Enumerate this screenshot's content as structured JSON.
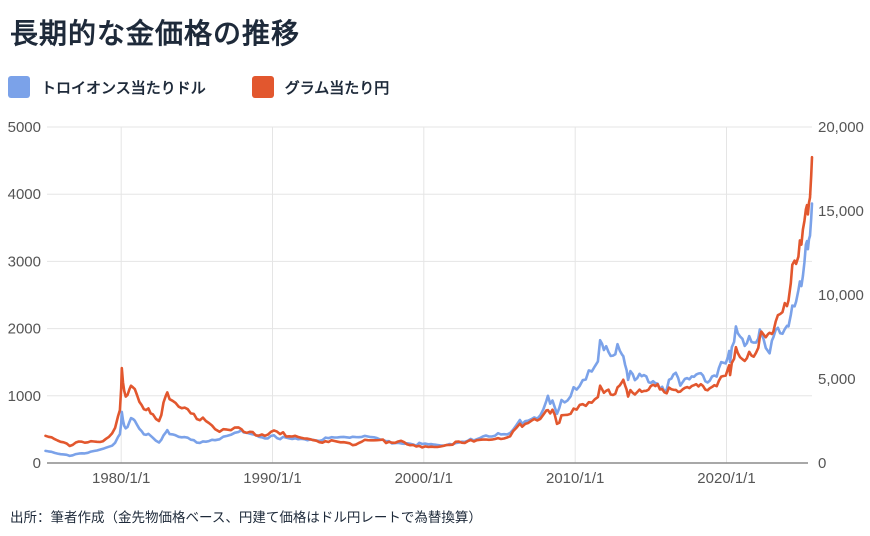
{
  "title": "長期的な金価格の推移",
  "source_note": "出所：筆者作成（金先物価格ベース、円建て価格はドル円レートで為替換算）",
  "colors": {
    "usd_line": "#7BA2E9",
    "jpy_line": "#E2572E",
    "title_text": "#1E2A3A",
    "tick_text": "#555555",
    "grid": "#E5E5E5",
    "axis": "#8C8C8C",
    "background": "#FFFFFF"
  },
  "legend": [
    {
      "label": "トロイオンス当たりドル",
      "color": "#7BA2E9"
    },
    {
      "label": "グラム当たり円",
      "color": "#E2572E"
    }
  ],
  "chart_data": {
    "type": "line",
    "title": "長期的な金価格の推移",
    "grid": true,
    "legend_position": "top-left",
    "x_axis": {
      "range": [
        1975.1,
        2025.65
      ],
      "ticks": [
        {
          "label": "1980/1/1",
          "year": 1980
        },
        {
          "label": "1990/1/1",
          "year": 1990
        },
        {
          "label": "2000/1/1",
          "year": 2000
        },
        {
          "label": "2010/1/1",
          "year": 2010
        },
        {
          "label": "2020/1/1",
          "year": 2020
        }
      ]
    },
    "y_left": {
      "range": [
        0,
        5000
      ],
      "tick_values": [
        0,
        1000,
        2000,
        3000,
        4000,
        5000
      ],
      "tick_labels": [
        "0",
        "1000",
        "2000",
        "3000",
        "4000",
        "5000"
      ]
    },
    "y_right": {
      "range": [
        0,
        20000
      ],
      "tick_values": [
        0,
        5000,
        10000,
        15000,
        20000
      ],
      "tick_labels": [
        "0",
        "5,000",
        "10,000",
        "15,000",
        "20,000"
      ]
    },
    "series": [
      {
        "name": "トロイオンス当たりドル",
        "axis": "left",
        "color": "#7BA2E9"
      },
      {
        "name": "グラム当たり円",
        "axis": "right",
        "color": "#E2572E"
      }
    ],
    "points_format": [
      "year",
      "usd_per_troy_oz",
      "jpy_per_gram"
    ],
    "points": [
      [
        1975.0,
        180,
        1620
      ],
      [
        1975.2,
        172,
        1560
      ],
      [
        1975.4,
        166,
        1530
      ],
      [
        1975.6,
        150,
        1420
      ],
      [
        1975.8,
        140,
        1340
      ],
      [
        1976.0,
        131,
        1260
      ],
      [
        1976.2,
        128,
        1230
      ],
      [
        1976.4,
        122,
        1160
      ],
      [
        1976.6,
        105,
        1010
      ],
      [
        1976.8,
        114,
        1080
      ],
      [
        1977.0,
        132,
        1220
      ],
      [
        1977.2,
        140,
        1280
      ],
      [
        1977.4,
        144,
        1270
      ],
      [
        1977.6,
        143,
        1210
      ],
      [
        1977.8,
        152,
        1230
      ],
      [
        1978.0,
        170,
        1300
      ],
      [
        1978.2,
        178,
        1280
      ],
      [
        1978.4,
        186,
        1260
      ],
      [
        1978.6,
        200,
        1250
      ],
      [
        1978.8,
        212,
        1300
      ],
      [
        1979.0,
        228,
        1440
      ],
      [
        1979.2,
        242,
        1560
      ],
      [
        1979.4,
        258,
        1760
      ],
      [
        1979.6,
        300,
        2090
      ],
      [
        1979.8,
        390,
        2800
      ],
      [
        1979.92,
        430,
        3150
      ],
      [
        1980.0,
        590,
        4450
      ],
      [
        1980.04,
        760,
        5650
      ],
      [
        1980.12,
        635,
        4800
      ],
      [
        1980.2,
        555,
        4300
      ],
      [
        1980.3,
        515,
        3950
      ],
      [
        1980.42,
        535,
        4050
      ],
      [
        1980.55,
        615,
        4400
      ],
      [
        1980.65,
        668,
        4600
      ],
      [
        1980.78,
        655,
        4500
      ],
      [
        1980.9,
        630,
        4400
      ],
      [
        1981.05,
        570,
        4050
      ],
      [
        1981.2,
        510,
        3650
      ],
      [
        1981.35,
        475,
        3450
      ],
      [
        1981.5,
        425,
        3200
      ],
      [
        1981.65,
        420,
        3150
      ],
      [
        1981.8,
        435,
        3250
      ],
      [
        1981.95,
        405,
        2950
      ],
      [
        1982.1,
        375,
        2900
      ],
      [
        1982.3,
        330,
        2620
      ],
      [
        1982.5,
        305,
        2500
      ],
      [
        1982.65,
        345,
        2850
      ],
      [
        1982.8,
        410,
        3600
      ],
      [
        1982.95,
        455,
        4000
      ],
      [
        1983.05,
        490,
        4200
      ],
      [
        1983.2,
        430,
        3800
      ],
      [
        1983.4,
        425,
        3700
      ],
      [
        1983.6,
        412,
        3580
      ],
      [
        1983.8,
        390,
        3350
      ],
      [
        1984.0,
        382,
        3260
      ],
      [
        1984.2,
        386,
        3300
      ],
      [
        1984.4,
        376,
        3200
      ],
      [
        1984.6,
        346,
        2950
      ],
      [
        1984.8,
        340,
        2920
      ],
      [
        1985.0,
        303,
        2620
      ],
      [
        1985.2,
        299,
        2550
      ],
      [
        1985.4,
        322,
        2700
      ],
      [
        1985.6,
        317,
        2500
      ],
      [
        1985.8,
        326,
        2380
      ],
      [
        1986.0,
        345,
        2230
      ],
      [
        1986.2,
        340,
        2020
      ],
      [
        1986.5,
        352,
        1860
      ],
      [
        1986.75,
        392,
        2010
      ],
      [
        1987.0,
        404,
        1990
      ],
      [
        1987.25,
        420,
        1950
      ],
      [
        1987.5,
        450,
        2110
      ],
      [
        1987.75,
        462,
        2120
      ],
      [
        1987.95,
        486,
        2010
      ],
      [
        1988.1,
        454,
        1860
      ],
      [
        1988.3,
        450,
        1800
      ],
      [
        1988.5,
        438,
        1860
      ],
      [
        1988.7,
        426,
        1840
      ],
      [
        1988.9,
        416,
        1640
      ],
      [
        1989.1,
        390,
        1630
      ],
      [
        1989.3,
        382,
        1700
      ],
      [
        1989.5,
        366,
        1620
      ],
      [
        1989.7,
        366,
        1690
      ],
      [
        1989.9,
        404,
        1860
      ],
      [
        1990.1,
        412,
        1940
      ],
      [
        1990.3,
        370,
        1870
      ],
      [
        1990.5,
        354,
        1720
      ],
      [
        1990.7,
        388,
        1830
      ],
      [
        1990.9,
        378,
        1580
      ],
      [
        1991.1,
        368,
        1590
      ],
      [
        1991.3,
        357,
        1580
      ],
      [
        1991.5,
        367,
        1620
      ],
      [
        1991.7,
        354,
        1550
      ],
      [
        1991.9,
        360,
        1500
      ],
      [
        1992.1,
        354,
        1460
      ],
      [
        1992.3,
        340,
        1450
      ],
      [
        1992.5,
        349,
        1410
      ],
      [
        1992.7,
        344,
        1360
      ],
      [
        1992.9,
        334,
        1330
      ],
      [
        1993.1,
        329,
        1240
      ],
      [
        1993.3,
        341,
        1210
      ],
      [
        1993.5,
        378,
        1300
      ],
      [
        1993.7,
        371,
        1250
      ],
      [
        1993.9,
        384,
        1350
      ],
      [
        1994.1,
        379,
        1310
      ],
      [
        1994.3,
        381,
        1270
      ],
      [
        1994.5,
        386,
        1230
      ],
      [
        1994.7,
        389,
        1240
      ],
      [
        1994.9,
        383,
        1210
      ],
      [
        1995.1,
        376,
        1170
      ],
      [
        1995.3,
        390,
        1060
      ],
      [
        1995.5,
        386,
        1090
      ],
      [
        1995.7,
        384,
        1190
      ],
      [
        1995.9,
        388,
        1270
      ],
      [
        1996.1,
        404,
        1380
      ],
      [
        1996.3,
        394,
        1360
      ],
      [
        1996.5,
        386,
        1350
      ],
      [
        1996.7,
        383,
        1350
      ],
      [
        1996.9,
        372,
        1360
      ],
      [
        1997.1,
        351,
        1370
      ],
      [
        1997.3,
        344,
        1390
      ],
      [
        1997.5,
        325,
        1190
      ],
      [
        1997.7,
        324,
        1260
      ],
      [
        1997.9,
        291,
        1210
      ],
      [
        1998.1,
        296,
        1200
      ],
      [
        1998.3,
        301,
        1280
      ],
      [
        1998.5,
        291,
        1320
      ],
      [
        1998.7,
        286,
        1240
      ],
      [
        1998.9,
        293,
        1110
      ],
      [
        1999.1,
        286,
        1060
      ],
      [
        1999.3,
        275,
        1070
      ],
      [
        1999.5,
        257,
        980
      ],
      [
        1999.7,
        301,
        1020
      ],
      [
        1999.9,
        283,
        930
      ],
      [
        2000.1,
        289,
        990
      ],
      [
        2000.3,
        279,
        950
      ],
      [
        2000.5,
        281,
        970
      ],
      [
        2000.7,
        274,
        950
      ],
      [
        2000.9,
        268,
        950
      ],
      [
        2001.1,
        262,
        980
      ],
      [
        2001.3,
        259,
        1020
      ],
      [
        2001.5,
        267,
        1070
      ],
      [
        2001.7,
        282,
        1080
      ],
      [
        2001.9,
        275,
        1090
      ],
      [
        2002.1,
        296,
        1260
      ],
      [
        2002.3,
        303,
        1280
      ],
      [
        2002.5,
        317,
        1210
      ],
      [
        2002.7,
        314,
        1190
      ],
      [
        2002.9,
        331,
        1300
      ],
      [
        2003.1,
        359,
        1370
      ],
      [
        2003.3,
        336,
        1280
      ],
      [
        2003.5,
        354,
        1360
      ],
      [
        2003.7,
        371,
        1380
      ],
      [
        2003.9,
        394,
        1390
      ],
      [
        2004.1,
        409,
        1400
      ],
      [
        2004.3,
        394,
        1380
      ],
      [
        2004.5,
        395,
        1390
      ],
      [
        2004.7,
        406,
        1430
      ],
      [
        2004.9,
        444,
        1480
      ],
      [
        2005.1,
        426,
        1430
      ],
      [
        2005.3,
        429,
        1460
      ],
      [
        2005.5,
        426,
        1520
      ],
      [
        2005.7,
        446,
        1590
      ],
      [
        2005.9,
        494,
        1890
      ],
      [
        2006.1,
        556,
        2080
      ],
      [
        2006.35,
        640,
        2340
      ],
      [
        2006.5,
        584,
        2160
      ],
      [
        2006.7,
        622,
        2330
      ],
      [
        2006.9,
        630,
        2380
      ],
      [
        2007.1,
        652,
        2510
      ],
      [
        2007.3,
        679,
        2620
      ],
      [
        2007.5,
        661,
        2530
      ],
      [
        2007.7,
        712,
        2630
      ],
      [
        2007.9,
        800,
        2880
      ],
      [
        2008.1,
        926,
        3130
      ],
      [
        2008.2,
        1000,
        3150
      ],
      [
        2008.35,
        882,
        2950
      ],
      [
        2008.5,
        930,
        3170
      ],
      [
        2008.65,
        832,
        2880
      ],
      [
        2008.8,
        732,
        2330
      ],
      [
        2008.95,
        818,
        2400
      ],
      [
        2009.1,
        938,
        2840
      ],
      [
        2009.3,
        902,
        2860
      ],
      [
        2009.5,
        932,
        2870
      ],
      [
        2009.7,
        992,
        2930
      ],
      [
        2009.9,
        1128,
        3240
      ],
      [
        2010.1,
        1092,
        3180
      ],
      [
        2010.3,
        1148,
        3460
      ],
      [
        2010.5,
        1232,
        3500
      ],
      [
        2010.7,
        1242,
        3400
      ],
      [
        2010.9,
        1378,
        3620
      ],
      [
        2011.1,
        1362,
        3590
      ],
      [
        2011.3,
        1438,
        3790
      ],
      [
        2011.5,
        1512,
        3920
      ],
      [
        2011.65,
        1828,
        4600
      ],
      [
        2011.78,
        1772,
        4380
      ],
      [
        2011.9,
        1682,
        4180
      ],
      [
        2012.05,
        1738,
        4300
      ],
      [
        2012.2,
        1652,
        4370
      ],
      [
        2012.35,
        1592,
        4080
      ],
      [
        2012.5,
        1598,
        4050
      ],
      [
        2012.65,
        1618,
        4120
      ],
      [
        2012.8,
        1768,
        4500
      ],
      [
        2012.95,
        1672,
        4620
      ],
      [
        2013.1,
        1612,
        4830
      ],
      [
        2013.18,
        1590,
        4950
      ],
      [
        2013.3,
        1462,
        4620
      ],
      [
        2013.4,
        1382,
        4370
      ],
      [
        2013.5,
        1236,
        3950
      ],
      [
        2013.65,
        1368,
        4340
      ],
      [
        2013.8,
        1322,
        4180
      ],
      [
        2013.95,
        1232,
        4080
      ],
      [
        2014.1,
        1262,
        4220
      ],
      [
        2014.25,
        1328,
        4370
      ],
      [
        2014.4,
        1292,
        4240
      ],
      [
        2014.55,
        1308,
        4290
      ],
      [
        2014.7,
        1288,
        4300
      ],
      [
        2014.85,
        1202,
        4370
      ],
      [
        2015.0,
        1192,
        4580
      ],
      [
        2015.15,
        1218,
        4660
      ],
      [
        2015.3,
        1188,
        4580
      ],
      [
        2015.45,
        1182,
        4690
      ],
      [
        2015.6,
        1102,
        4380
      ],
      [
        2015.75,
        1134,
        4400
      ],
      [
        2015.9,
        1066,
        4210
      ],
      [
        2016.05,
        1092,
        4150
      ],
      [
        2016.2,
        1238,
        4490
      ],
      [
        2016.35,
        1256,
        4390
      ],
      [
        2016.5,
        1318,
        4360
      ],
      [
        2016.65,
        1342,
        4350
      ],
      [
        2016.8,
        1268,
        4230
      ],
      [
        2016.95,
        1152,
        4250
      ],
      [
        2017.1,
        1202,
        4380
      ],
      [
        2017.25,
        1252,
        4470
      ],
      [
        2017.4,
        1264,
        4520
      ],
      [
        2017.55,
        1246,
        4460
      ],
      [
        2017.7,
        1288,
        4580
      ],
      [
        2017.85,
        1282,
        4630
      ],
      [
        2018.0,
        1316,
        4690
      ],
      [
        2018.15,
        1332,
        4560
      ],
      [
        2018.3,
        1336,
        4690
      ],
      [
        2018.45,
        1302,
        4590
      ],
      [
        2018.6,
        1218,
        4370
      ],
      [
        2018.75,
        1198,
        4330
      ],
      [
        2018.9,
        1226,
        4450
      ],
      [
        2019.05,
        1288,
        4530
      ],
      [
        2019.2,
        1302,
        4630
      ],
      [
        2019.35,
        1286,
        4570
      ],
      [
        2019.5,
        1412,
        4890
      ],
      [
        2019.65,
        1502,
        5140
      ],
      [
        2019.8,
        1492,
        5180
      ],
      [
        2019.95,
        1482,
        5200
      ],
      [
        2020.1,
        1582,
        5620
      ],
      [
        2020.18,
        1668,
        5820
      ],
      [
        2020.24,
        1502,
        5230
      ],
      [
        2020.35,
        1722,
        5950
      ],
      [
        2020.5,
        1802,
        6200
      ],
      [
        2020.62,
        2032,
        6890
      ],
      [
        2020.75,
        1932,
        6550
      ],
      [
        2020.9,
        1882,
        6300
      ],
      [
        2021.05,
        1848,
        6180
      ],
      [
        2021.2,
        1742,
        6080
      ],
      [
        2021.35,
        1782,
        6240
      ],
      [
        2021.5,
        1888,
        6620
      ],
      [
        2021.65,
        1802,
        6390
      ],
      [
        2021.8,
        1792,
        6330
      ],
      [
        2021.95,
        1792,
        6560
      ],
      [
        2022.1,
        1852,
        6860
      ],
      [
        2022.2,
        1988,
        7480
      ],
      [
        2022.3,
        1932,
        7820
      ],
      [
        2022.45,
        1842,
        7640
      ],
      [
        2022.6,
        1712,
        7480
      ],
      [
        2022.75,
        1662,
        7680
      ],
      [
        2022.85,
        1632,
        7750
      ],
      [
        2023.0,
        1822,
        7680
      ],
      [
        2023.1,
        1872,
        7830
      ],
      [
        2023.25,
        1982,
        8420
      ],
      [
        2023.4,
        2012,
        8800
      ],
      [
        2023.55,
        1932,
        8870
      ],
      [
        2023.7,
        1922,
        8980
      ],
      [
        2023.85,
        1992,
        9520
      ],
      [
        2024.0,
        2042,
        9340
      ],
      [
        2024.1,
        2032,
        9680
      ],
      [
        2024.25,
        2202,
        10700
      ],
      [
        2024.35,
        2342,
        11800
      ],
      [
        2024.5,
        2332,
        12050
      ],
      [
        2024.6,
        2402,
        11850
      ],
      [
        2024.75,
        2572,
        12280
      ],
      [
        2024.85,
        2702,
        13250
      ],
      [
        2024.95,
        2632,
        13000
      ],
      [
        2025.05,
        2782,
        13900
      ],
      [
        2025.15,
        2982,
        14400
      ],
      [
        2025.25,
        3252,
        15100
      ],
      [
        2025.32,
        3302,
        15350
      ],
      [
        2025.38,
        3182,
        14800
      ],
      [
        2025.45,
        3332,
        15500
      ],
      [
        2025.52,
        3382,
        15800
      ],
      [
        2025.6,
        3642,
        17100
      ],
      [
        2025.65,
        3862,
        18200
      ]
    ]
  }
}
